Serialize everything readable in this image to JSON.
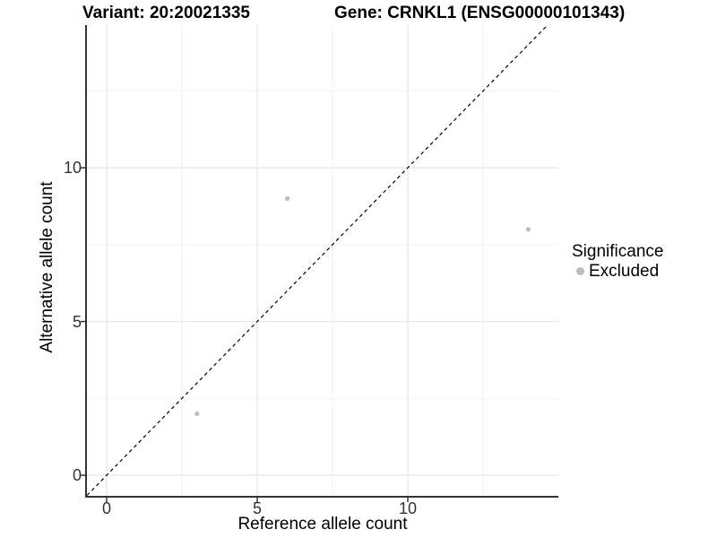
{
  "figure": {
    "title_left": "Variant: 20:20021335",
    "title_right": "Gene: CRNKL1 (ENSG00000101343)"
  },
  "chart_data": {
    "type": "scatter",
    "title": "Variant: 20:20021335",
    "subtitle": "Gene: CRNKL1 (ENSG00000101343)",
    "xlabel": "Reference allele count",
    "ylabel": "Alternative allele count",
    "x_ticks": [
      0,
      5,
      10
    ],
    "y_ticks": [
      0,
      5,
      10
    ],
    "x_minor_ticks": [
      2.5,
      7.5,
      12.5
    ],
    "y_minor_ticks": [
      2.5,
      7.5,
      12.5
    ],
    "xlim": [
      -0.655,
      15.0
    ],
    "ylim": [
      -0.67,
      14.64
    ],
    "grid": "major+minor",
    "series": [
      {
        "name": "Excluded",
        "color": "#bdbdbd",
        "points": [
          {
            "x": 3,
            "y": 2
          },
          {
            "x": 6,
            "y": 9
          },
          {
            "x": 14,
            "y": 8
          }
        ]
      }
    ],
    "reference_line": {
      "type": "identity",
      "slope": 1,
      "intercept": 0,
      "style": "dashed",
      "color": "#000000"
    },
    "legend": {
      "title": "Significance",
      "position": "right",
      "entries": [
        {
          "label": "Excluded",
          "color": "#bdbdbd"
        }
      ]
    }
  },
  "colors": {
    "background": "#ffffff",
    "grid_major": "#e6e6e6",
    "grid_minor": "#f2f2f2",
    "axis_line": "#333333",
    "tick_mark": "#333333",
    "tick_text": "#333333",
    "point": "#bdbdbd"
  },
  "icons": {
    "legend_point": "filled-circle"
  }
}
